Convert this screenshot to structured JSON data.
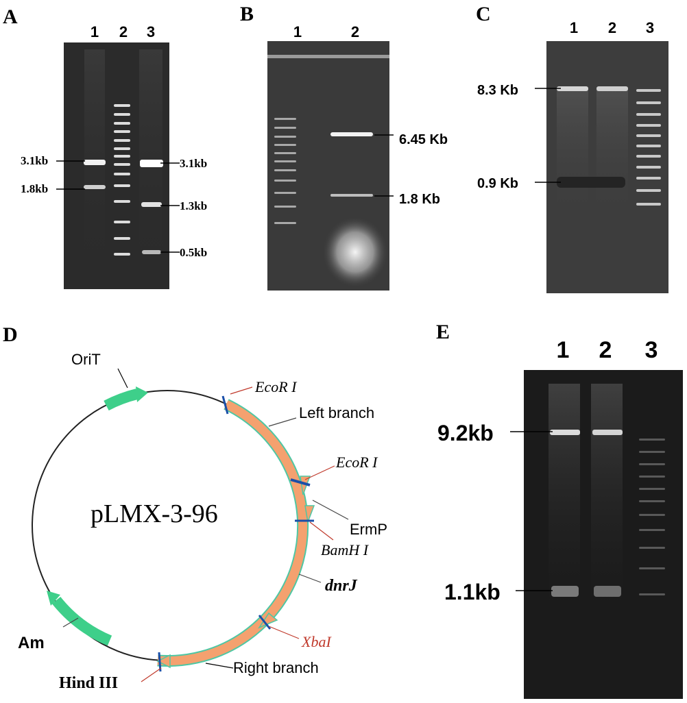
{
  "panels": {
    "A": {
      "letter": "A",
      "lanes": [
        "1",
        "2",
        "3"
      ],
      "left_markers": [
        "3.1kb",
        "1.8kb"
      ],
      "right_markers": [
        "3.1kb",
        "1.3kb",
        "0.5kb"
      ]
    },
    "B": {
      "letter": "B",
      "lanes": [
        "1",
        "2"
      ],
      "markers": [
        "6.45 Kb",
        "1.8 Kb"
      ]
    },
    "C": {
      "letter": "C",
      "lanes": [
        "1",
        "2",
        "3"
      ],
      "markers": [
        "8.3 Kb",
        "0.9 Kb"
      ]
    },
    "D": {
      "letter": "D",
      "plasmid_name": "pLMX-3-96",
      "labels": {
        "orit": "OriT",
        "ecor1_top": "EcoR I",
        "left_branch": "Left branch",
        "ecor1_mid": "EcoR I",
        "ermp": "ErmP",
        "bamh1": "BamH I",
        "dnrj": "dnrJ",
        "xba1": "XbaI",
        "right_branch": "Right branch",
        "hind3": "Hind III",
        "am": "Am"
      },
      "colors": {
        "gene_orange": "#f4a16f",
        "marker_green": "#3ecf8a",
        "site_blue": "#1a4fa8",
        "site_leader": "#c0392b",
        "enzyme_xba": "#c0392b"
      }
    },
    "E": {
      "letter": "E",
      "lanes": [
        "1",
        "2",
        "3"
      ],
      "markers": [
        "9.2kb",
        "1.1kb"
      ]
    }
  }
}
